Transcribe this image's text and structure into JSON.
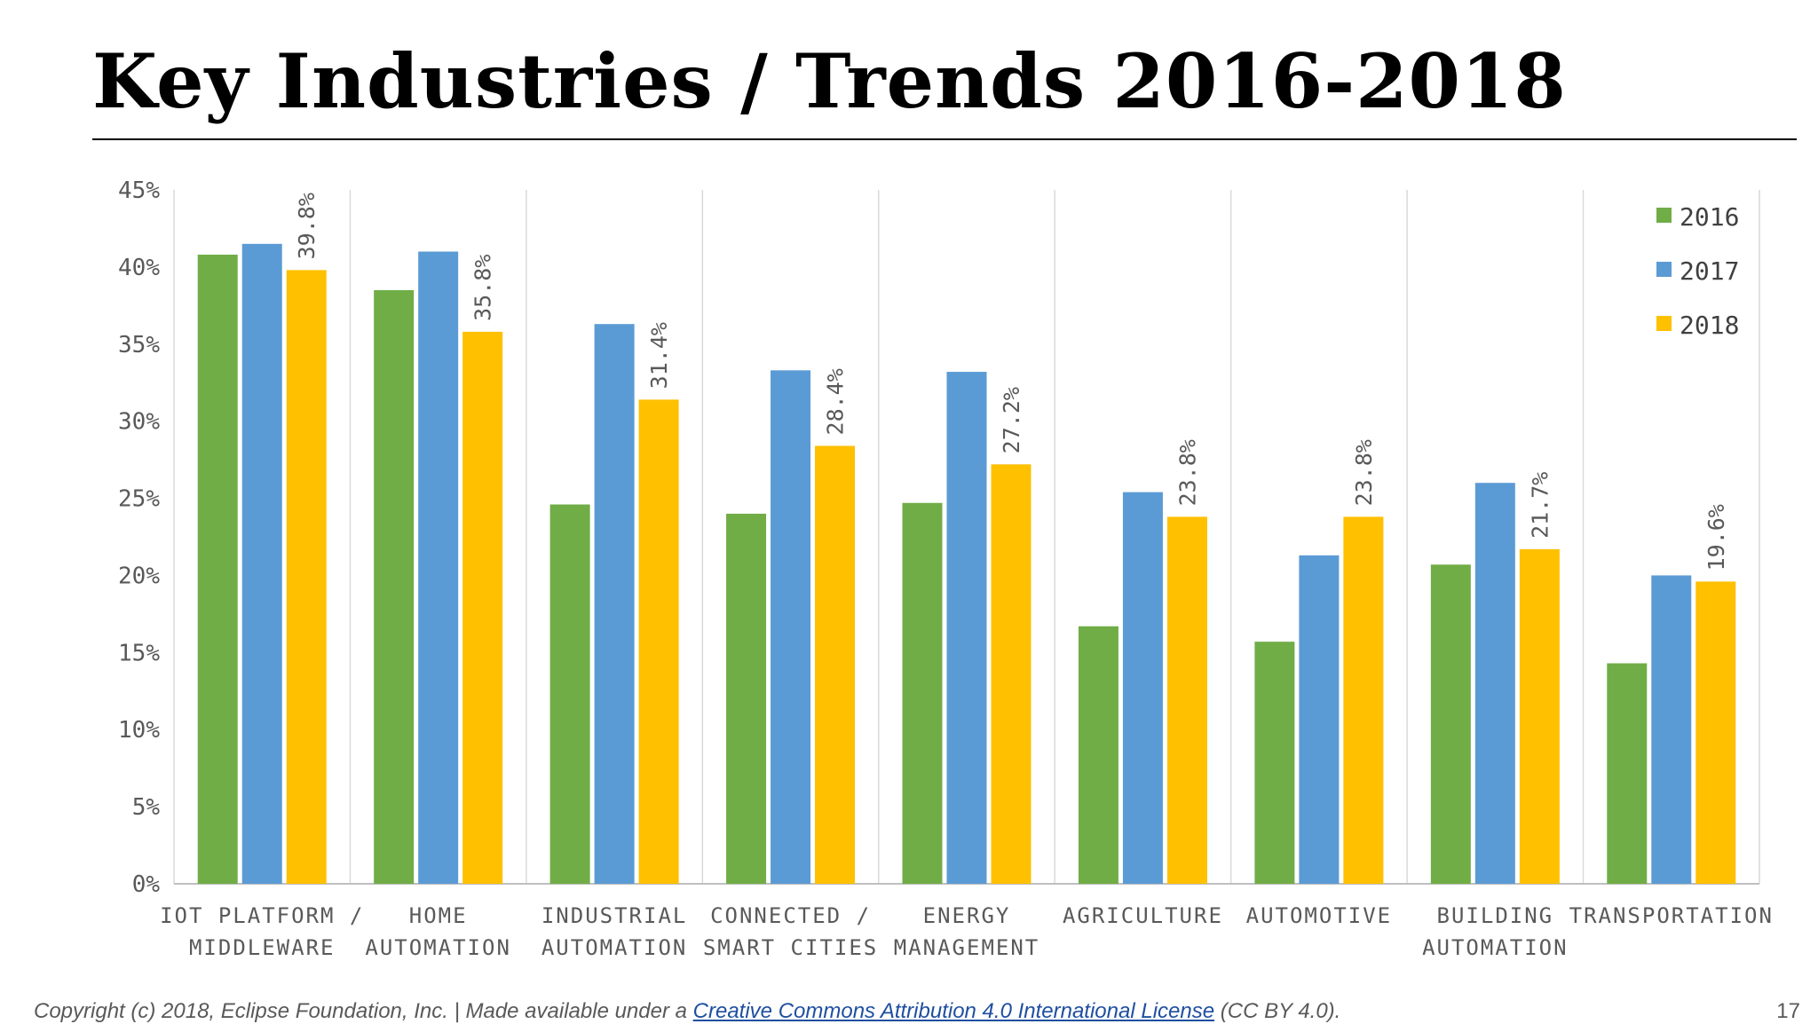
{
  "slide": {
    "title": "Key Industries / Trends 2016-2018",
    "footer_prefix": "Copyright (c) 2018, Eclipse Foundation, Inc. | Made available under a ",
    "footer_link": "Creative Commons Attribution 4.0 International License",
    "footer_suffix": " (CC BY 4.0).",
    "page_number": "17"
  },
  "colors": {
    "2016": "#70ad47",
    "2017": "#5b9bd5",
    "2018": "#ffc000"
  },
  "chart_data": {
    "type": "bar",
    "title": "",
    "xlabel": "",
    "ylabel": "",
    "ylim": [
      0,
      45
    ],
    "y_ticks": [
      "0%",
      "5%",
      "10%",
      "15%",
      "20%",
      "25%",
      "30%",
      "35%",
      "40%",
      "45%"
    ],
    "grid": "vertical separators between categories",
    "legend_position": "top-right",
    "categories": [
      [
        "IOT PLATFORM /",
        "MIDDLEWARE"
      ],
      [
        "HOME",
        "AUTOMATION"
      ],
      [
        "INDUSTRIAL",
        "AUTOMATION"
      ],
      [
        "CONNECTED /",
        "SMART CITIES"
      ],
      [
        "ENERGY",
        "MANAGEMENT"
      ],
      [
        "AGRICULTURE"
      ],
      [
        "AUTOMOTIVE"
      ],
      [
        "BUILDING",
        "AUTOMATION"
      ],
      [
        "TRANSPORTATION"
      ]
    ],
    "series": [
      {
        "name": "2016",
        "values": [
          40.8,
          38.5,
          24.6,
          24.0,
          24.7,
          16.7,
          15.7,
          20.7,
          14.3
        ]
      },
      {
        "name": "2017",
        "values": [
          41.5,
          41.0,
          36.3,
          33.3,
          33.2,
          25.4,
          21.3,
          26.0,
          20.0
        ]
      },
      {
        "name": "2018",
        "values": [
          39.8,
          35.8,
          31.4,
          28.4,
          27.2,
          23.8,
          23.8,
          21.7,
          19.6
        ]
      }
    ],
    "data_labels": [
      "39.8%",
      "35.8%",
      "31.4%",
      "28.4%",
      "27.2%",
      "23.8%",
      "23.8%",
      "21.7%",
      "19.6%"
    ]
  }
}
